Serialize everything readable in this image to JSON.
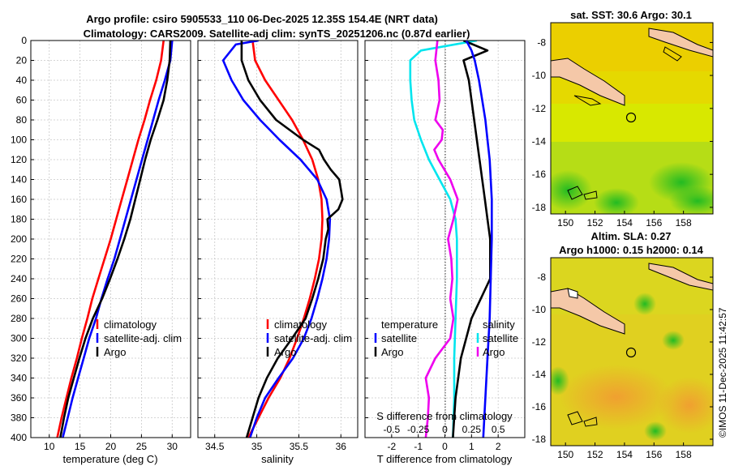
{
  "title": {
    "line1": "Argo profile: csiro 5905533_110 06-Dec-2025 12.35S 154.4E (NRT data)",
    "line2": "Climatology: CARS2009. Satellite-adj clim: synTS_20251206.nc (0.87d earlier)"
  },
  "colors": {
    "clim": "#ff0000",
    "sat": "#0000ff",
    "argo": "#000000",
    "tdiff": "#00e5ee",
    "sdiff": "#ee00ee"
  },
  "chart_data": [
    {
      "type": "line",
      "name": "temperature",
      "xlabel": "temperature (deg C)",
      "ylabel": "",
      "xlim": [
        7,
        33
      ],
      "ylim": [
        0,
        400
      ],
      "xticks": [
        10,
        15,
        20,
        25,
        30
      ],
      "yticks": [
        0,
        20,
        40,
        60,
        80,
        100,
        120,
        140,
        160,
        180,
        200,
        220,
        240,
        260,
        280,
        300,
        320,
        340,
        360,
        380,
        400
      ],
      "legend": [
        "climatology",
        "satellite-adj. clim",
        "Argo"
      ],
      "series": [
        {
          "name": "climatology",
          "color": "#ff0000",
          "depth": [
            0,
            20,
            40,
            60,
            80,
            100,
            120,
            140,
            160,
            180,
            200,
            220,
            240,
            260,
            280,
            300,
            320,
            340,
            360,
            380,
            400
          ],
          "values": [
            28.6,
            28.2,
            27.4,
            26.4,
            25.5,
            24.5,
            23.6,
            22.7,
            21.8,
            20.9,
            20.0,
            19.0,
            18.0,
            17.0,
            16.2,
            15.3,
            14.5,
            13.6,
            12.8,
            12.0,
            11.3
          ]
        },
        {
          "name": "satellite-adj. clim",
          "color": "#0000ff",
          "depth": [
            0,
            20,
            40,
            60,
            80,
            100,
            120,
            140,
            160,
            180,
            200,
            220,
            240,
            260,
            280,
            300,
            320,
            340,
            360,
            380,
            400
          ],
          "values": [
            30.0,
            29.7,
            28.8,
            27.8,
            26.9,
            26.0,
            25.1,
            24.2,
            23.3,
            22.4,
            21.5,
            20.6,
            19.5,
            18.5,
            17.6,
            16.5,
            15.6,
            14.7,
            13.8,
            13.0,
            12.2
          ]
        },
        {
          "name": "Argo",
          "color": "#000000",
          "depth": [
            0,
            20,
            40,
            60,
            80,
            100,
            120,
            140,
            160,
            180,
            200,
            220,
            240,
            260,
            280,
            300,
            320,
            340,
            360,
            380,
            400
          ],
          "values": [
            29.7,
            29.6,
            29.2,
            28.6,
            27.6,
            26.5,
            25.6,
            24.8,
            24.0,
            23.2,
            22.2,
            21.1,
            19.9,
            18.6,
            17.1,
            15.9,
            14.9,
            14.0,
            13.1,
            12.4,
            11.8
          ]
        }
      ]
    },
    {
      "type": "line",
      "name": "salinity",
      "xlabel": "salinity",
      "ylabel": "",
      "xlim": [
        34.3,
        36.2
      ],
      "ylim": [
        0,
        400
      ],
      "xticks": [
        34.5,
        35,
        35.5,
        36
      ],
      "legend": [
        "climatology",
        "satellite-adj. clim",
        "Argo"
      ],
      "series": [
        {
          "name": "climatology",
          "color": "#ff0000",
          "depth": [
            0,
            20,
            40,
            60,
            80,
            100,
            120,
            140,
            160,
            180,
            200,
            220,
            240,
            260,
            280,
            300,
            320,
            340,
            360,
            380,
            400
          ],
          "values": [
            34.95,
            34.98,
            35.1,
            35.26,
            35.42,
            35.55,
            35.66,
            35.73,
            35.77,
            35.78,
            35.77,
            35.74,
            35.69,
            35.63,
            35.56,
            35.48,
            35.39,
            35.28,
            35.14,
            35.02,
            34.9
          ]
        },
        {
          "name": "satellite-adj. clim",
          "color": "#0000ff",
          "depth": [
            0,
            4,
            20,
            40,
            60,
            80,
            100,
            120,
            140,
            160,
            180,
            200,
            220,
            240,
            260,
            280,
            300,
            320,
            340,
            360,
            380,
            400
          ],
          "values": [
            35.02,
            34.75,
            34.6,
            34.7,
            34.84,
            35.04,
            35.27,
            35.52,
            35.72,
            35.83,
            35.87,
            35.86,
            35.83,
            35.78,
            35.72,
            35.65,
            35.56,
            35.43,
            35.26,
            35.1,
            35.0,
            34.92
          ]
        },
        {
          "name": "Argo",
          "color": "#000000",
          "depth": [
            0,
            20,
            40,
            60,
            80,
            100,
            110,
            120,
            130,
            140,
            150,
            160,
            170,
            180,
            190,
            200,
            220,
            240,
            260,
            280,
            300,
            320,
            340,
            360,
            380,
            400
          ],
          "values": [
            34.82,
            34.82,
            34.9,
            35.04,
            35.23,
            35.55,
            35.74,
            35.8,
            35.88,
            35.98,
            36.0,
            36.02,
            35.97,
            35.84,
            35.85,
            35.82,
            35.79,
            35.73,
            35.66,
            35.58,
            35.42,
            35.25,
            35.12,
            35.02,
            34.95,
            34.88
          ]
        }
      ]
    },
    {
      "type": "line",
      "name": "differences",
      "xlabel": "T difference from climatology",
      "xlabel_top": "S difference from climatology",
      "xlim": [
        -3,
        3
      ],
      "ylim": [
        0,
        400
      ],
      "xticks": [
        -2,
        -1,
        0,
        1,
        2
      ],
      "xticks_s": [
        -0.5,
        -0.25,
        0,
        0.25,
        0.5
      ],
      "xticks_s_labels": [
        "-0.5",
        "-0.25",
        "0",
        "0.25",
        "0.5"
      ],
      "legend_t_title": "temperature",
      "legend_t": [
        "satellite",
        "Argo"
      ],
      "legend_s_title": "salinity",
      "legend_s": [
        "satellite",
        "Argo"
      ],
      "series": [
        {
          "name": "T satellite",
          "color": "#00e5ee",
          "depth": [
            0,
            10,
            20,
            40,
            60,
            80,
            100,
            120,
            140,
            160,
            180,
            200,
            240,
            280,
            320,
            360,
            400
          ],
          "values": [
            1.2,
            -0.9,
            -1.3,
            -1.3,
            -1.25,
            -1.15,
            -0.9,
            -0.6,
            -0.2,
            0.2,
            0.4,
            0.45,
            0.45,
            0.4,
            0.35,
            0.35,
            0.3
          ]
        },
        {
          "name": "T Argo",
          "color": "#000000",
          "depth": [
            0,
            10,
            20,
            40,
            60,
            80,
            100,
            120,
            140,
            160,
            180,
            200,
            240,
            280,
            320,
            360,
            400
          ],
          "values": [
            0.7,
            1.6,
            0.7,
            0.9,
            1.0,
            1.1,
            1.2,
            1.3,
            1.4,
            1.5,
            1.6,
            1.7,
            1.7,
            1.0,
            0.6,
            0.4,
            0.3
          ]
        },
        {
          "name": "S satellite",
          "color": "#0000ff",
          "depth": [
            0,
            10,
            20,
            40,
            60,
            80,
            100,
            120,
            140,
            160,
            180,
            200,
            240,
            280,
            320,
            360,
            400
          ],
          "values": [
            0.2,
            0.25,
            0.28,
            0.32,
            0.35,
            0.38,
            0.4,
            0.42,
            0.43,
            0.44,
            0.44,
            0.44,
            0.43,
            0.42,
            0.4,
            0.38,
            0.36
          ]
        },
        {
          "name": "S Argo",
          "color": "#ee00ee",
          "depth": [
            0,
            20,
            40,
            60,
            80,
            90,
            100,
            110,
            120,
            140,
            160,
            180,
            200,
            220,
            240,
            260,
            280,
            300,
            320,
            340,
            360,
            380,
            400
          ],
          "values": [
            -0.07,
            -0.09,
            -0.06,
            -0.05,
            -0.09,
            -0.02,
            -0.03,
            -0.1,
            -0.06,
            0.05,
            0.12,
            0.08,
            0.03,
            0.06,
            0.07,
            0.05,
            0.08,
            0.05,
            -0.09,
            -0.18,
            -0.15,
            -0.16,
            -0.18
          ]
        }
      ]
    }
  ],
  "maps": {
    "sst": {
      "title": "sat. SST: 30.6 Argo: 30.1",
      "xticks": [
        150,
        152,
        154,
        156,
        158
      ],
      "yticks": [
        -8,
        -10,
        -12,
        -14,
        -16,
        -18
      ],
      "float_lon": 154.4,
      "float_lat": -12.35
    },
    "sla": {
      "title1": "Altim. SLA: 0.27",
      "title2": "Argo h1000: 0.15 h2000: 0.14",
      "xticks": [
        150,
        152,
        154,
        156,
        158
      ],
      "yticks": [
        -8,
        -10,
        -12,
        -14,
        -16,
        -18
      ],
      "float_lon": 154.4,
      "float_lat": -12.35
    }
  },
  "credit": "©IMOS 11-Dec-2025 11:42:57"
}
